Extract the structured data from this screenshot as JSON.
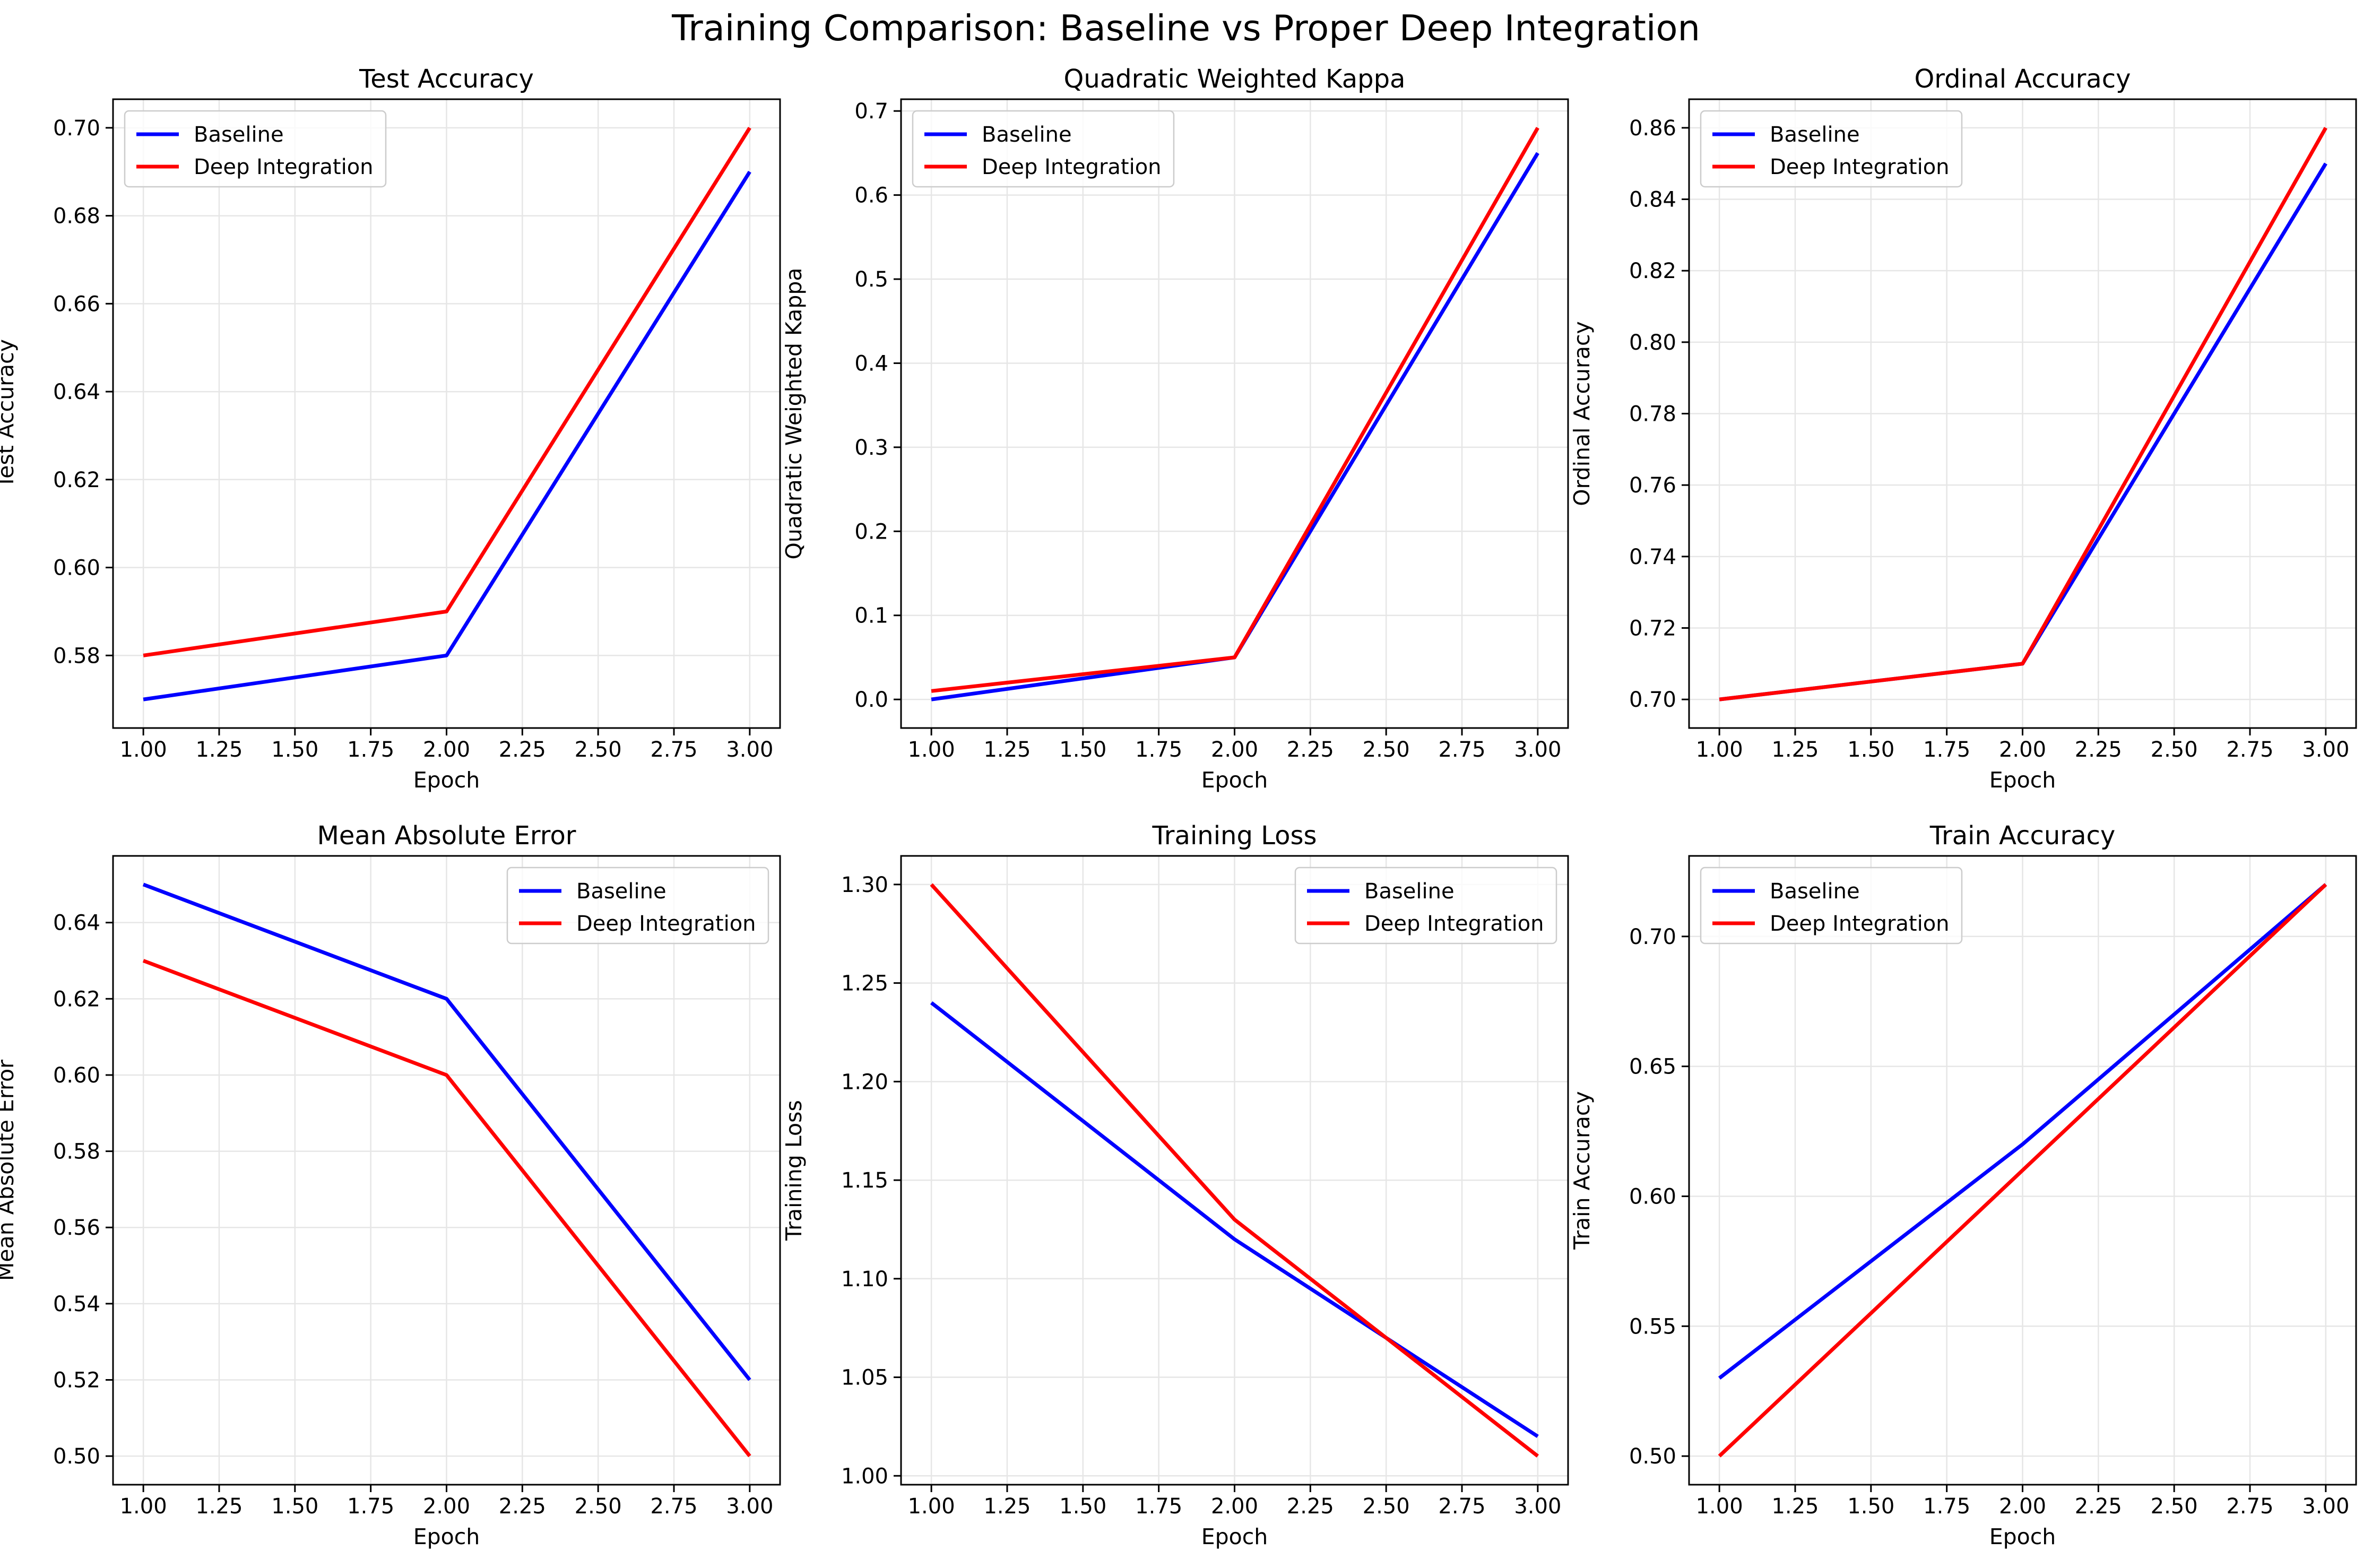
{
  "figure": {
    "suptitle": "Training Comparison: Baseline vs Proper Deep Integration"
  },
  "colors": {
    "baseline": "#0000ff",
    "deep_integration": "#ff0000",
    "grid": "#e6e6e6",
    "axes": "#000000"
  },
  "chart_data": [
    {
      "type": "line",
      "title": "Test Accuracy",
      "xlabel": "Epoch",
      "ylabel": "Test Accuracy",
      "x": [
        1,
        2,
        3
      ],
      "xlim": [
        0.9,
        3.1
      ],
      "ylim": [
        0.5635,
        0.7065
      ],
      "xticks": [
        "1.00",
        "1.25",
        "1.50",
        "1.75",
        "2.00",
        "2.25",
        "2.50",
        "2.75",
        "3.00"
      ],
      "yticks": [
        "0.58",
        "0.60",
        "0.62",
        "0.64",
        "0.66",
        "0.68",
        "0.70"
      ],
      "grid": true,
      "legend_position": "upper left",
      "series": [
        {
          "name": "Baseline",
          "color_key": "baseline",
          "values": [
            0.57,
            0.58,
            0.69
          ]
        },
        {
          "name": "Deep Integration",
          "color_key": "deep_integration",
          "values": [
            0.58,
            0.59,
            0.7
          ]
        }
      ]
    },
    {
      "type": "line",
      "title": "Quadratic Weighted Kappa",
      "xlabel": "Epoch",
      "ylabel": "Quadratic Weighted Kappa",
      "x": [
        1,
        2,
        3
      ],
      "xlim": [
        0.9,
        3.1
      ],
      "ylim": [
        -0.034,
        0.714
      ],
      "xticks": [
        "1.00",
        "1.25",
        "1.50",
        "1.75",
        "2.00",
        "2.25",
        "2.50",
        "2.75",
        "3.00"
      ],
      "yticks": [
        "0.0",
        "0.1",
        "0.2",
        "0.3",
        "0.4",
        "0.5",
        "0.6",
        "0.7"
      ],
      "grid": true,
      "legend_position": "upper left",
      "series": [
        {
          "name": "Baseline",
          "color_key": "baseline",
          "values": [
            0.0,
            0.05,
            0.65
          ]
        },
        {
          "name": "Deep Integration",
          "color_key": "deep_integration",
          "values": [
            0.01,
            0.05,
            0.68
          ]
        }
      ]
    },
    {
      "type": "line",
      "title": "Ordinal Accuracy",
      "xlabel": "Epoch",
      "ylabel": "Ordinal Accuracy",
      "x": [
        1,
        2,
        3
      ],
      "xlim": [
        0.9,
        3.1
      ],
      "ylim": [
        0.692,
        0.868
      ],
      "xticks": [
        "1.00",
        "1.25",
        "1.50",
        "1.75",
        "2.00",
        "2.25",
        "2.50",
        "2.75",
        "3.00"
      ],
      "yticks": [
        "0.70",
        "0.72",
        "0.74",
        "0.76",
        "0.78",
        "0.80",
        "0.82",
        "0.84",
        "0.86"
      ],
      "grid": true,
      "legend_position": "upper left",
      "series": [
        {
          "name": "Baseline",
          "color_key": "baseline",
          "values": [
            0.7,
            0.71,
            0.85
          ]
        },
        {
          "name": "Deep Integration",
          "color_key": "deep_integration",
          "values": [
            0.7,
            0.71,
            0.86
          ]
        }
      ]
    },
    {
      "type": "line",
      "title": "Mean Absolute Error",
      "xlabel": "Epoch",
      "ylabel": "Mean Absolute Error",
      "x": [
        1,
        2,
        3
      ],
      "xlim": [
        0.9,
        3.1
      ],
      "ylim": [
        0.4925,
        0.6575
      ],
      "xticks": [
        "1.00",
        "1.25",
        "1.50",
        "1.75",
        "2.00",
        "2.25",
        "2.50",
        "2.75",
        "3.00"
      ],
      "yticks": [
        "0.50",
        "0.52",
        "0.54",
        "0.56",
        "0.58",
        "0.60",
        "0.62",
        "0.64"
      ],
      "grid": true,
      "legend_position": "upper right",
      "series": [
        {
          "name": "Baseline",
          "color_key": "baseline",
          "values": [
            0.65,
            0.62,
            0.52
          ]
        },
        {
          "name": "Deep Integration",
          "color_key": "deep_integration",
          "values": [
            0.63,
            0.6,
            0.5
          ]
        }
      ]
    },
    {
      "type": "line",
      "title": "Training Loss",
      "xlabel": "Epoch",
      "ylabel": "Training Loss",
      "x": [
        1,
        2,
        3
      ],
      "xlim": [
        0.9,
        3.1
      ],
      "ylim": [
        0.9955,
        1.3145
      ],
      "xticks": [
        "1.00",
        "1.25",
        "1.50",
        "1.75",
        "2.00",
        "2.25",
        "2.50",
        "2.75",
        "3.00"
      ],
      "yticks": [
        "1.00",
        "1.05",
        "1.10",
        "1.15",
        "1.20",
        "1.25",
        "1.30"
      ],
      "grid": true,
      "legend_position": "upper right",
      "series": [
        {
          "name": "Baseline",
          "color_key": "baseline",
          "values": [
            1.24,
            1.12,
            1.02
          ]
        },
        {
          "name": "Deep Integration",
          "color_key": "deep_integration",
          "values": [
            1.3,
            1.13,
            1.01
          ]
        }
      ]
    },
    {
      "type": "line",
      "title": "Train Accuracy",
      "xlabel": "Epoch",
      "ylabel": "Train Accuracy",
      "x": [
        1,
        2,
        3
      ],
      "xlim": [
        0.9,
        3.1
      ],
      "ylim": [
        0.489,
        0.731
      ],
      "xticks": [
        "1.00",
        "1.25",
        "1.50",
        "1.75",
        "2.00",
        "2.25",
        "2.50",
        "2.75",
        "3.00"
      ],
      "yticks": [
        "0.50",
        "0.55",
        "0.60",
        "0.65",
        "0.70"
      ],
      "grid": true,
      "legend_position": "upper left",
      "series": [
        {
          "name": "Baseline",
          "color_key": "baseline",
          "values": [
            0.53,
            0.62,
            0.72
          ]
        },
        {
          "name": "Deep Integration",
          "color_key": "deep_integration",
          "values": [
            0.5,
            0.61,
            0.72
          ]
        }
      ]
    }
  ]
}
